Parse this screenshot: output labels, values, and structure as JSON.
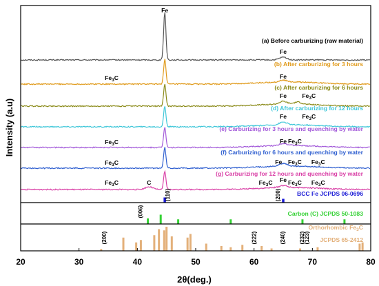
{
  "chart_data": {
    "type": "line",
    "xlabel": "2θ(deg.)",
    "ylabel": "Intensity (a.u)",
    "xlim": [
      20,
      80
    ],
    "x_ticks": [
      "20",
      "30",
      "40",
      "50",
      "60",
      "70",
      "80"
    ],
    "series": [
      {
        "name": "(a) Before carburizing (raw material)",
        "color": "#555555",
        "peaks": [
          {
            "x": 44.7,
            "h": 70
          },
          {
            "x": 65.0,
            "h": 4
          }
        ],
        "peak_labels": [
          {
            "text": "Fe",
            "x": 44.7
          },
          {
            "text": "Fe",
            "x": 65.0
          }
        ]
      },
      {
        "name": "(b) After carburizing for 3 hours",
        "color": "#e09a1a",
        "peaks": [
          {
            "x": 44.7,
            "h": 36
          },
          {
            "x": 65.0,
            "h": 3
          }
        ],
        "peak_labels": [
          {
            "text": "Fe₃C",
            "x": 35.6
          },
          {
            "text": "Fe",
            "x": 65.0
          }
        ]
      },
      {
        "name": "(c) After carburizing for 6 hours",
        "color": "#8a8a18",
        "peaks": [
          {
            "x": 44.7,
            "h": 32
          },
          {
            "x": 65.0,
            "h": 4
          },
          {
            "x": 67.5,
            "h": 3
          }
        ],
        "peak_labels": [
          {
            "text": "Fe",
            "x": 65.0
          },
          {
            "text": "Fe₃C",
            "x": 69.4
          }
        ]
      },
      {
        "name": "(d) After carburizing for 12 hours",
        "color": "#3cc6d8",
        "peaks": [
          {
            "x": 44.7,
            "h": 30
          },
          {
            "x": 65.0,
            "h": 4
          }
        ],
        "peak_labels": [
          {
            "text": "Fe",
            "x": 65.0
          },
          {
            "text": "Fe₃C",
            "x": 69.4
          }
        ]
      },
      {
        "name": "(e) Carburizing for 3 hours and quenching by water",
        "color": "#a259d9",
        "peaks": [
          {
            "x": 44.7,
            "h": 30
          },
          {
            "x": 65.0,
            "h": 3
          }
        ],
        "peak_labels": [
          {
            "text": "Fe₃C",
            "x": 35.6
          },
          {
            "text": "Fe",
            "x": 65.0
          },
          {
            "text": "Fe₃C",
            "x": 67.0
          }
        ]
      },
      {
        "name": "(f) Carburizing for 6 hours and quenching by water",
        "color": "#2f5fd0",
        "peaks": [
          {
            "x": 44.7,
            "h": 30
          },
          {
            "x": 65.0,
            "h": 4
          }
        ],
        "peak_labels": [
          {
            "text": "Fe₃C",
            "x": 35.6
          },
          {
            "text": "Fe",
            "x": 64.2
          },
          {
            "text": "Fe₃C",
            "x": 67.0
          },
          {
            "text": "Fe₃C",
            "x": 71.0
          }
        ]
      },
      {
        "name": "(g) Carburizing for 12 hours and quenching by water",
        "color": "#d93fa6",
        "peaks": [
          {
            "x": 44.7,
            "h": 26
          },
          {
            "x": 42.0,
            "h": 4
          },
          {
            "x": 65.0,
            "h": 3
          }
        ],
        "peak_labels": [
          {
            "text": "Fe₃C",
            "x": 35.6
          },
          {
            "text": "C",
            "x": 42.0
          },
          {
            "text": "Fe₃C",
            "x": 62.0
          },
          {
            "text": "Fe",
            "x": 65.0
          },
          {
            "text": "Fe₃C",
            "x": 67.0
          },
          {
            "text": "Fe₃C",
            "x": 71.0
          }
        ]
      }
    ],
    "references": [
      {
        "name": "BCC Fe JCPDS 06-0696",
        "color": "#1a1ad6",
        "lines": [
          {
            "x": 44.7,
            "h": 0.75
          },
          {
            "x": 65.0,
            "h": 0.55
          }
        ],
        "hkl": [
          {
            "text": "(110)",
            "x": 44.7
          },
          {
            "text": "(200)",
            "x": 65.0
          }
        ]
      },
      {
        "name": "Carbon (C) JCPDS 50-1083",
        "color": "#34d134",
        "lines": [
          {
            "x": 41.8,
            "h": 0.3
          },
          {
            "x": 44.0,
            "h": 0.5
          },
          {
            "x": 47.0,
            "h": 0.25
          },
          {
            "x": 56.0,
            "h": 0.25
          },
          {
            "x": 68.3,
            "h": 0.25
          },
          {
            "x": 75.5,
            "h": 0.25
          }
        ],
        "hkl": [
          {
            "text": "(006)",
            "x": 41.8
          }
        ]
      },
      {
        "name": "Orthorhombic Fe₃C",
        "name2": "JCPDS 65-2412",
        "color": "#e3b07a",
        "lines": [
          {
            "x": 33.8,
            "h": 0.08
          },
          {
            "x": 37.6,
            "h": 0.55
          },
          {
            "x": 39.8,
            "h": 0.35
          },
          {
            "x": 40.6,
            "h": 0.45
          },
          {
            "x": 42.9,
            "h": 0.65
          },
          {
            "x": 43.7,
            "h": 0.9
          },
          {
            "x": 44.6,
            "h": 0.85
          },
          {
            "x": 45.0,
            "h": 1.0
          },
          {
            "x": 45.9,
            "h": 0.6
          },
          {
            "x": 48.6,
            "h": 0.55
          },
          {
            "x": 49.1,
            "h": 0.7
          },
          {
            "x": 51.8,
            "h": 0.3
          },
          {
            "x": 54.4,
            "h": 0.2
          },
          {
            "x": 56.0,
            "h": 0.15
          },
          {
            "x": 58.0,
            "h": 0.25
          },
          {
            "x": 61.3,
            "h": 0.2
          },
          {
            "x": 63.0,
            "h": 0.1
          },
          {
            "x": 67.9,
            "h": 0.1
          },
          {
            "x": 70.9,
            "h": 0.15
          },
          {
            "x": 78.1,
            "h": 0.3
          },
          {
            "x": 78.6,
            "h": 0.35
          }
        ],
        "hkl": [
          {
            "text": "(200)",
            "x": 35.6
          },
          {
            "text": "(222)",
            "x": 61.3
          },
          {
            "text": "(240)",
            "x": 66.2
          },
          {
            "text": "(232)",
            "x": 69.5
          },
          {
            "text": "(123)",
            "x": 70.3
          }
        ]
      }
    ]
  }
}
